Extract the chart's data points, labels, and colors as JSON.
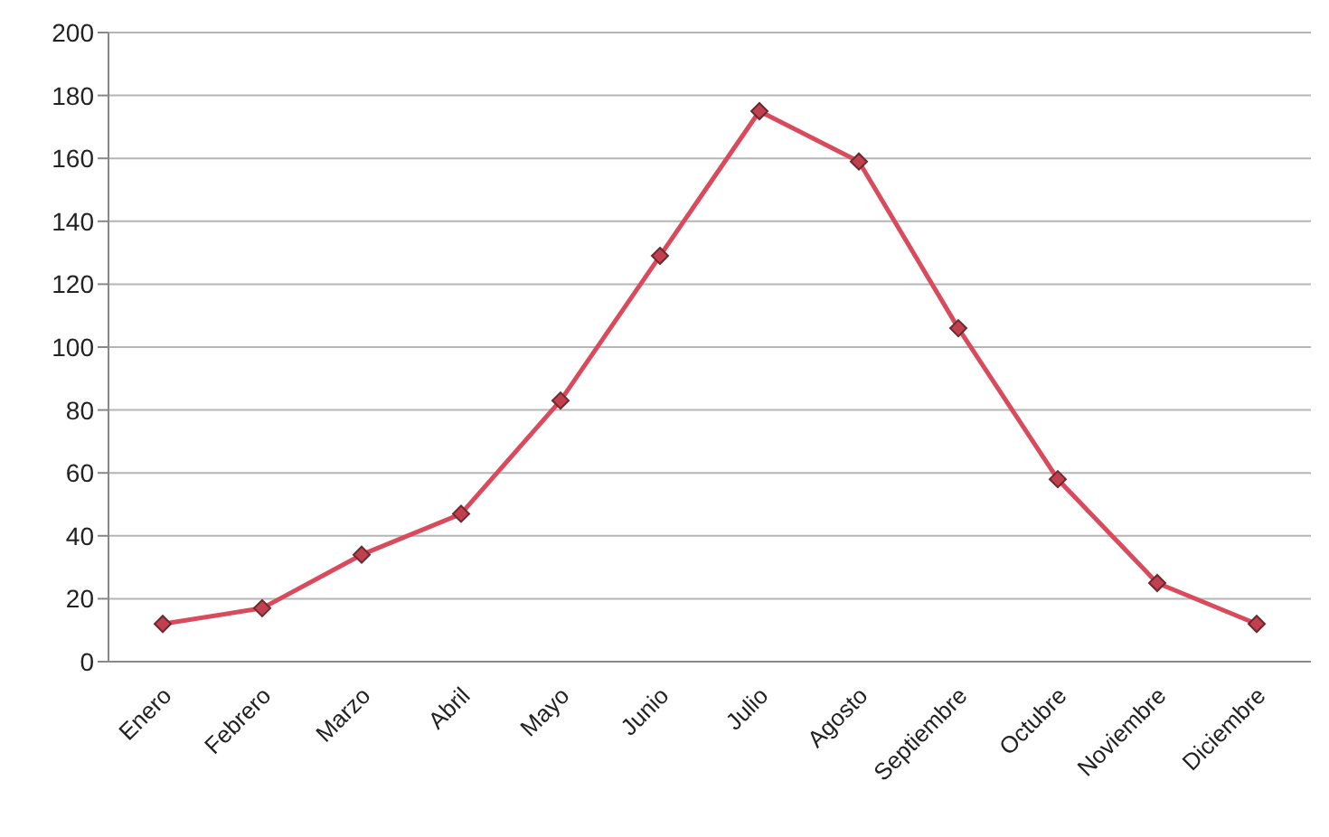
{
  "chart_data": {
    "type": "line",
    "categories": [
      "Enero",
      "Febrero",
      "Marzo",
      "Abril",
      "Mayo",
      "Junio",
      "Julio",
      "Agosto",
      "Septiembre",
      "Octubre",
      "Noviembre",
      "Diciembre"
    ],
    "series": [
      {
        "color": "#d94a5c",
        "values": [
          12,
          17,
          34,
          47,
          83,
          129,
          175,
          159,
          106,
          58,
          25,
          12
        ]
      }
    ],
    "ylim": [
      0,
      200
    ],
    "yticks": [
      0,
      20,
      40,
      60,
      80,
      100,
      120,
      140,
      160,
      180,
      200
    ],
    "grid": "y",
    "legend": false,
    "marker": "diamond",
    "line_style": "solid"
  }
}
